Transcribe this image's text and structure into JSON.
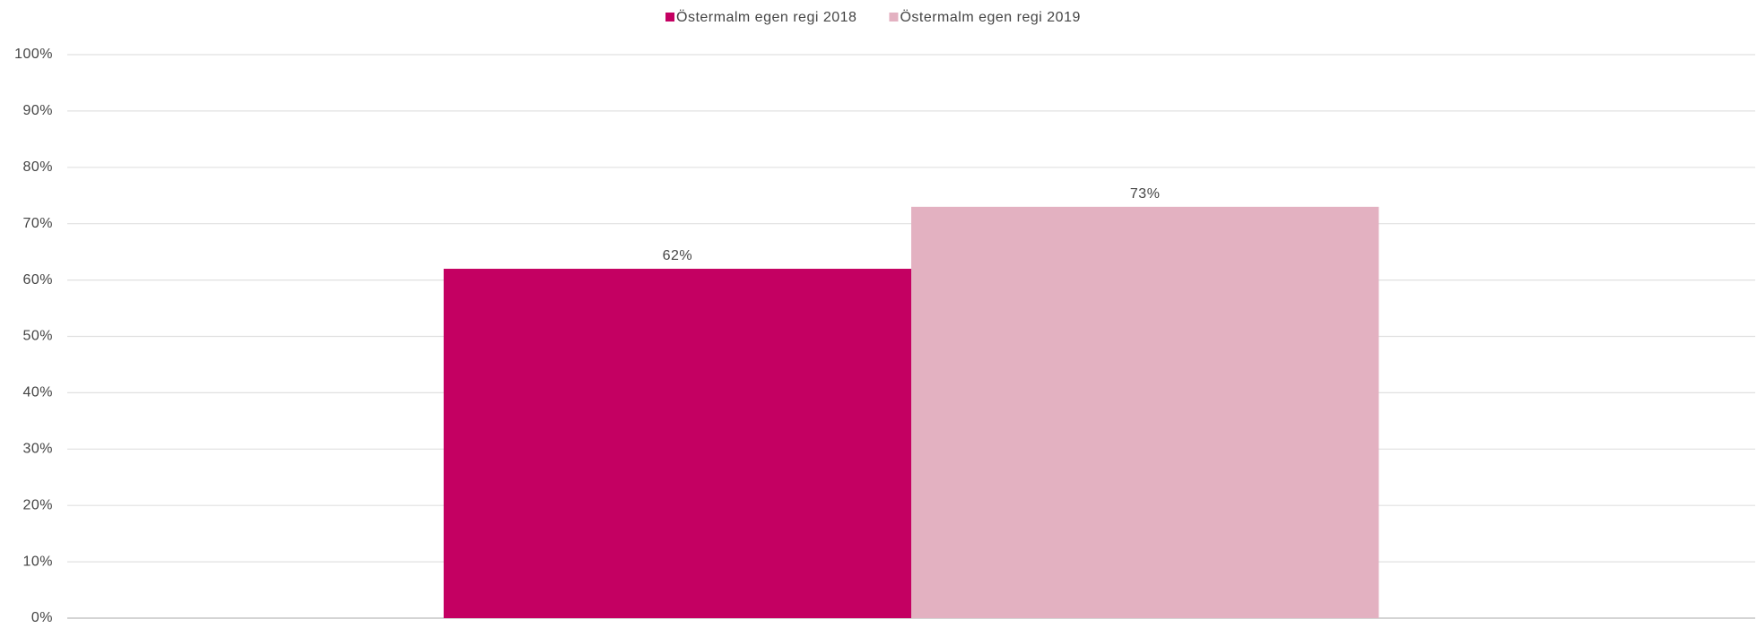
{
  "chart_data": {
    "type": "bar",
    "categories": [
      null
    ],
    "series": [
      {
        "name": "Östermalm egen regi 2018",
        "color": "#c40062",
        "values": [
          62
        ],
        "value_labels": [
          "62%"
        ]
      },
      {
        "name": "Östermalm egen regi 2019",
        "color": "#e3b1c1",
        "values": [
          73
        ],
        "value_labels": [
          "73%"
        ]
      }
    ],
    "ylim": [
      0,
      100
    ],
    "yticks": [
      {
        "value": 0,
        "label": "0%"
      },
      {
        "value": 10,
        "label": "10%"
      },
      {
        "value": 20,
        "label": "20%"
      },
      {
        "value": 30,
        "label": "30%"
      },
      {
        "value": 40,
        "label": "40%"
      },
      {
        "value": 50,
        "label": "50%"
      },
      {
        "value": 60,
        "label": "60%"
      },
      {
        "value": 70,
        "label": "70%"
      },
      {
        "value": 80,
        "label": "80%"
      },
      {
        "value": 90,
        "label": "90%"
      },
      {
        "value": 100,
        "label": "100%"
      }
    ],
    "grid": true,
    "legend": "top"
  }
}
